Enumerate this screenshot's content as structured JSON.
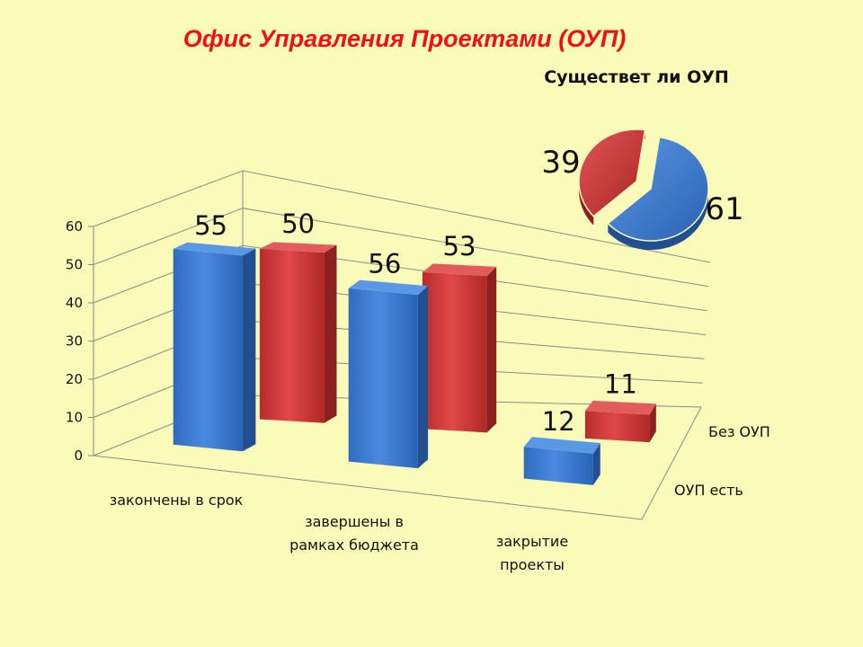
{
  "title": "Офис Управления Проектами (ОУП)",
  "colors": {
    "blue": "#3f7fd0",
    "red": "#d23a3a",
    "background": "#fbfbb9",
    "title": "#ee1111"
  },
  "chart_data": [
    {
      "type": "bar",
      "style": "3d-clustered-depth",
      "categories": [
        "законченыв срок",
        "завершены в рамках бюджета",
        "закрытие проекты"
      ],
      "category_lines": [
        [
          "закончены в срок"
        ],
        [
          "завершены в",
          "рамках бюджета"
        ],
        [
          "закрытие",
          "проекты"
        ]
      ],
      "series": [
        {
          "name": "ОУП есть",
          "values": [
            55,
            56,
            12
          ],
          "color": "#3f7fd0"
        },
        {
          "name": "Без ОУП",
          "values": [
            50,
            53,
            11
          ],
          "color": "#d23a3a"
        }
      ],
      "ylim": [
        0,
        60
      ],
      "yticks": [
        "0",
        "10",
        "20",
        "30",
        "40",
        "50",
        "60"
      ],
      "grid": true,
      "data_labels": true
    },
    {
      "type": "pie",
      "title": "Существет ли ОУП",
      "slices": [
        {
          "value": 61,
          "label": "61",
          "color": "#3f7fd0"
        },
        {
          "value": 39,
          "label": "39",
          "color": "#d23a3a"
        }
      ],
      "exploded": true
    }
  ]
}
